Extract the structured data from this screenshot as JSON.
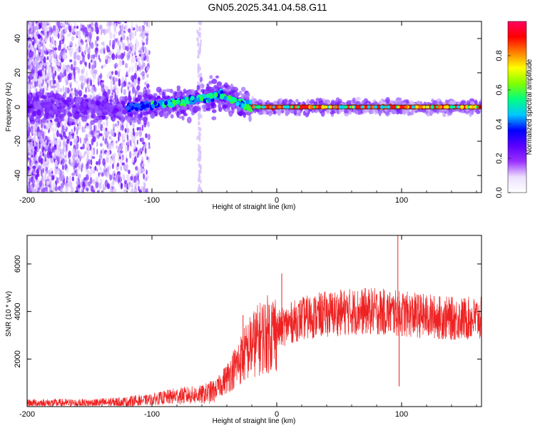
{
  "title": "GN05.2025.341.04.58.G11",
  "chart_data": [
    {
      "type": "heatmap",
      "name": "spectrogram",
      "title": "GN05.2025.341.04.58.G11",
      "xlabel": "Height of straight line (km)",
      "ylabel": "Frequency (Hz)",
      "xlim": [
        -200,
        164
      ],
      "ylim": [
        -50,
        50
      ],
      "xticks": [
        -200,
        -100,
        0,
        100
      ],
      "yticks": [
        -40,
        -20,
        0,
        20,
        40
      ],
      "tone_path": [
        {
          "x": -200,
          "y": 0
        },
        {
          "x": -150,
          "y": 0
        },
        {
          "x": -120,
          "y": 0
        },
        {
          "x": -100,
          "y": 1
        },
        {
          "x": -80,
          "y": 3
        },
        {
          "x": -60,
          "y": 5
        },
        {
          "x": -45,
          "y": 7
        },
        {
          "x": -35,
          "y": 4
        },
        {
          "x": -25,
          "y": 1
        },
        {
          "x": -15,
          "y": 0
        },
        {
          "x": 0,
          "y": 0
        },
        {
          "x": 164,
          "y": 0
        }
      ],
      "colorbar": {
        "label": "Normalized spectral amplitude",
        "range": [
          0,
          1
        ],
        "ticks": [
          "0.0",
          "0.2",
          "0.4",
          "0.6",
          "0.8"
        ],
        "colors": [
          "#ffffff",
          "#ece0ff",
          "#9b30ff",
          "#5a00ff",
          "#0000ff",
          "#00c8ff",
          "#00ff80",
          "#80ff00",
          "#ffff00",
          "#ff8000",
          "#ff0000",
          "#ff0060"
        ]
      }
    },
    {
      "type": "line",
      "name": "snr",
      "xlabel": "Height of straight line (km)",
      "ylabel": "SNR (10 * v/v)",
      "xlim": [
        -200,
        164
      ],
      "ylim": [
        0,
        7200
      ],
      "xticks": [
        -200,
        -100,
        0,
        100
      ],
      "yticks": [
        2000,
        4000,
        6000
      ],
      "color": "#ee2222",
      "trend": [
        {
          "x": -200,
          "y": 150
        },
        {
          "x": -150,
          "y": 150
        },
        {
          "x": -120,
          "y": 200
        },
        {
          "x": -100,
          "y": 300
        },
        {
          "x": -80,
          "y": 450
        },
        {
          "x": -60,
          "y": 500
        },
        {
          "x": -50,
          "y": 650
        },
        {
          "x": -40,
          "y": 1200
        },
        {
          "x": -30,
          "y": 1900
        },
        {
          "x": -20,
          "y": 2600
        },
        {
          "x": -10,
          "y": 3000
        },
        {
          "x": 0,
          "y": 3200
        },
        {
          "x": 10,
          "y": 3500
        },
        {
          "x": 20,
          "y": 3700
        },
        {
          "x": 40,
          "y": 3900
        },
        {
          "x": 60,
          "y": 4000
        },
        {
          "x": 80,
          "y": 4000
        },
        {
          "x": 100,
          "y": 3900
        },
        {
          "x": 120,
          "y": 3800
        },
        {
          "x": 140,
          "y": 3700
        },
        {
          "x": 164,
          "y": 3700
        }
      ],
      "spikes": [
        {
          "x": 97,
          "y": 7200
        },
        {
          "x": 98,
          "y": 850
        },
        {
          "x": 4,
          "y": 5600
        },
        {
          "x": -27,
          "y": 3850
        }
      ]
    }
  ]
}
